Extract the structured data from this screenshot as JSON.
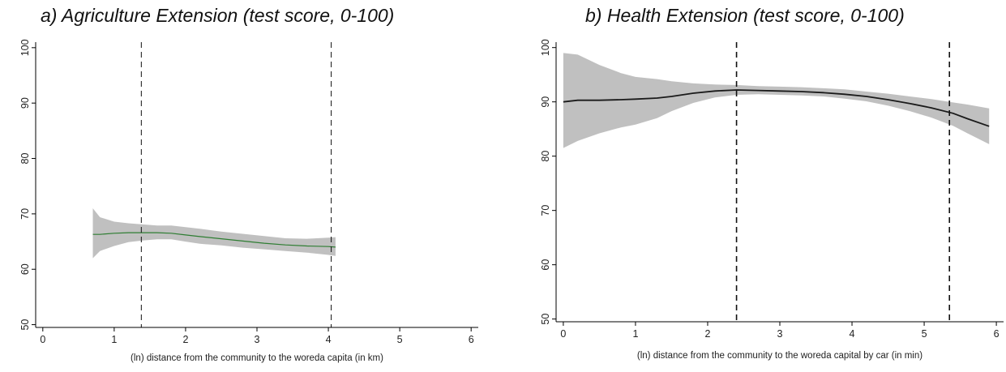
{
  "chart_data": [
    {
      "type": "line",
      "title": "a) Agriculture Extension (test score, 0-100)",
      "xlabel": "(ln) distance from the community to the woreda capita (in km)",
      "ylabel": "",
      "xlim": [
        -0.1,
        6.1
      ],
      "ylim": [
        49.5,
        101
      ],
      "xticks": [
        "0",
        "1",
        "2",
        "3",
        "4",
        "5",
        "6"
      ],
      "yticks": [
        "50",
        "60",
        "70",
        "80",
        "90",
        "100"
      ],
      "line_color": "#2e7d32",
      "band_color": "#c0c0c0",
      "vlines": [
        1.38,
        4.04
      ],
      "x": [
        0.7,
        0.8,
        1.0,
        1.2,
        1.4,
        1.6,
        1.8,
        2.0,
        2.2,
        2.5,
        2.8,
        3.1,
        3.4,
        3.7,
        4.0,
        4.1
      ],
      "y": [
        66.3,
        66.3,
        66.5,
        66.6,
        66.6,
        66.6,
        66.5,
        66.2,
        65.9,
        65.5,
        65.1,
        64.7,
        64.4,
        64.2,
        64.1,
        64.0
      ],
      "lower": [
        62.0,
        63.3,
        64.2,
        64.9,
        65.2,
        65.4,
        65.4,
        65.0,
        64.6,
        64.3,
        63.9,
        63.6,
        63.3,
        63.0,
        62.6,
        62.4
      ],
      "upper": [
        71.0,
        69.4,
        68.6,
        68.3,
        68.1,
        67.9,
        67.9,
        67.6,
        67.3,
        66.8,
        66.4,
        66.0,
        65.6,
        65.5,
        65.7,
        65.8
      ]
    },
    {
      "type": "line",
      "title": "b) Health Extension (test score, 0-100)",
      "xlabel": "(ln) distance from the community to the woreda capital by car (in min)",
      "ylabel": "",
      "xlim": [
        -0.1,
        6.1
      ],
      "ylim": [
        49.5,
        101
      ],
      "xticks": [
        "0",
        "1",
        "2",
        "3",
        "4",
        "5",
        "6"
      ],
      "yticks": [
        "50",
        "60",
        "70",
        "80",
        "90",
        "100"
      ],
      "line_color": "#1a1a1a",
      "band_color": "#c0c0c0",
      "vlines": [
        2.4,
        5.35
      ],
      "x": [
        0.0,
        0.2,
        0.5,
        0.8,
        1.0,
        1.3,
        1.5,
        1.8,
        2.1,
        2.4,
        2.7,
        3.0,
        3.3,
        3.6,
        3.9,
        4.2,
        4.5,
        4.8,
        5.1,
        5.4,
        5.6,
        5.9
      ],
      "y": [
        90.0,
        90.3,
        90.3,
        90.4,
        90.5,
        90.7,
        91.0,
        91.6,
        92.0,
        92.2,
        92.1,
        92.0,
        91.9,
        91.7,
        91.4,
        91.0,
        90.4,
        89.7,
        88.9,
        87.9,
        86.9,
        85.5
      ],
      "lower": [
        81.5,
        82.8,
        84.2,
        85.3,
        85.8,
        87.0,
        88.3,
        89.8,
        90.8,
        91.3,
        91.4,
        91.3,
        91.2,
        91.0,
        90.6,
        90.1,
        89.3,
        88.3,
        87.1,
        85.6,
        84.2,
        82.2
      ],
      "upper": [
        99.0,
        98.7,
        96.8,
        95.3,
        94.6,
        94.2,
        93.8,
        93.4,
        93.2,
        93.1,
        92.9,
        92.8,
        92.7,
        92.5,
        92.3,
        91.9,
        91.5,
        91.0,
        90.5,
        89.9,
        89.5,
        88.8
      ]
    }
  ]
}
